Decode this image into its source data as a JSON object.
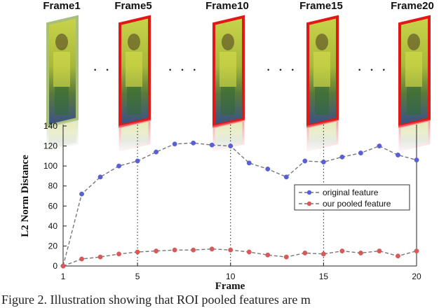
{
  "frames": [
    {
      "label": "Frame1",
      "border": "#a8c07a"
    },
    {
      "label": "Frame5",
      "border": "#e11818"
    },
    {
      "label": "Frame10",
      "border": "#e11818"
    },
    {
      "label": "Frame15",
      "border": "#e11818"
    },
    {
      "label": "Frame20",
      "border": "#e11818"
    }
  ],
  "ellipsis": [
    "· ·",
    "· · ·",
    "· · ·",
    "· · ·"
  ],
  "caption": "Figure 2. Illustration showing that ROI pooled features are m",
  "chart_data": {
    "type": "line",
    "xlabel": "Frame",
    "ylabel": "L2 Norm Distance",
    "xlim": [
      1,
      20
    ],
    "ylim": [
      0,
      140
    ],
    "xticks": [
      1,
      5,
      10,
      15,
      20
    ],
    "yticks": [
      0,
      20,
      40,
      60,
      80,
      100,
      120,
      140
    ],
    "x": [
      1,
      2,
      3,
      4,
      5,
      6,
      7,
      8,
      9,
      10,
      11,
      12,
      13,
      14,
      15,
      16,
      17,
      18,
      19,
      20
    ],
    "series": [
      {
        "name": "original feature",
        "color": "#5b5fd6",
        "values": [
          0,
          72,
          89,
          100,
          105,
          114,
          122,
          123,
          121,
          120,
          103,
          97,
          89,
          105,
          104,
          109,
          113,
          120,
          111,
          106
        ]
      },
      {
        "name": "our pooled feature",
        "color": "#d55a5a",
        "values": [
          0,
          7,
          9,
          12,
          14,
          15,
          16,
          16,
          17,
          16,
          14,
          11,
          9,
          13,
          12,
          15,
          13,
          15,
          10,
          15
        ]
      }
    ],
    "highlight_frames": [
      5,
      10,
      15
    ],
    "legend_position": "right"
  }
}
